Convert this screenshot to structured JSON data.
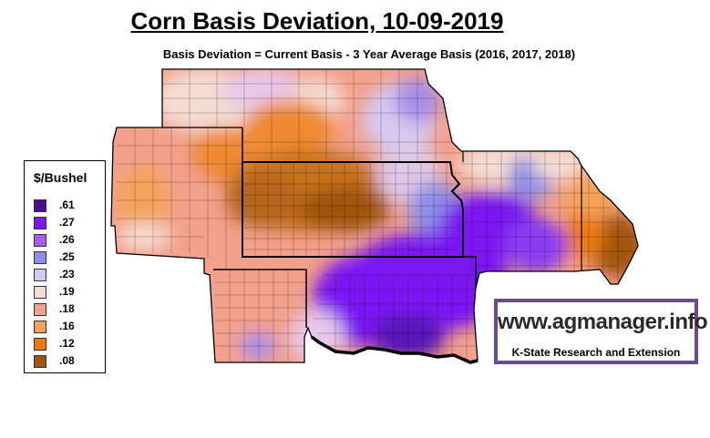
{
  "title": "Corn Basis Deviation, 10-09-2019",
  "subtitle": "Basis Deviation = Current Basis - 3 Year Average Basis (2016, 2017, 2018)",
  "legend": {
    "title": "$/Bushel",
    "items": [
      {
        "label": ".61",
        "color": "#4b0f8f"
      },
      {
        "label": ".27",
        "color": "#7b18f2"
      },
      {
        "label": ".26",
        "color": "#a75cf0"
      },
      {
        "label": ".25",
        "color": "#8e8ee8"
      },
      {
        "label": ".23",
        "color": "#d5c9f2"
      },
      {
        "label": ".19",
        "color": "#f5dcd2"
      },
      {
        "label": ".18",
        "color": "#f3a08c"
      },
      {
        "label": ".16",
        "color": "#f5a35c"
      },
      {
        "label": ".12",
        "color": "#ef7a10"
      },
      {
        "label": ".08",
        "color": "#a0550e"
      }
    ]
  },
  "logo": {
    "url": "www.agmanager.info",
    "org": "K-State Research and Extension",
    "border_color": "#6b4a8e"
  }
}
